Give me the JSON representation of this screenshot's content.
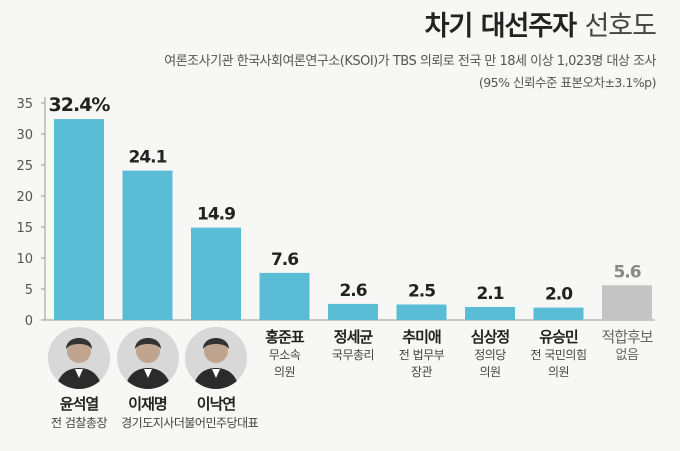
{
  "header": {
    "title_main": "차기 대선주자",
    "title_light": "선호도",
    "subtitle": "여론조사기관 한국사회여론연구소(KSOI)가 TBS 의뢰로 전국 만 18세 이상 1,023명 대상 조사",
    "note": "(95% 신뢰수준 표본오차±3.1%p)"
  },
  "colors": {
    "bar": "#5bbcd6",
    "bar_none": "#c4c4c4",
    "axis": "#999999"
  },
  "icons": [
    "person-portrait-icon",
    "person-portrait-icon",
    "person-portrait-icon"
  ],
  "chart_data": {
    "type": "bar",
    "ylim": [
      0,
      35
    ],
    "yticks": [
      0,
      5,
      10,
      15,
      20,
      25,
      30,
      35
    ],
    "categories": [
      "윤석열",
      "이재명",
      "이낙연",
      "홍준표",
      "정세균",
      "추미애",
      "심상정",
      "유승민",
      "적합후보"
    ],
    "descriptions": [
      "전 검찰총장",
      "경기도지사",
      "더불어민주당대표",
      "무소속\n의원",
      "국무총리",
      "전 법무부\n장관",
      "정의당\n의원",
      "전 국민의힘\n의원",
      "없음"
    ],
    "values": [
      32.4,
      24.1,
      14.9,
      7.6,
      2.6,
      2.5,
      2.1,
      2.0,
      5.6
    ],
    "value_labels": [
      "32.4%",
      "24.1",
      "14.9",
      "7.6",
      "2.6",
      "2.5",
      "2.1",
      "2.0",
      "5.6"
    ],
    "grid": false
  }
}
